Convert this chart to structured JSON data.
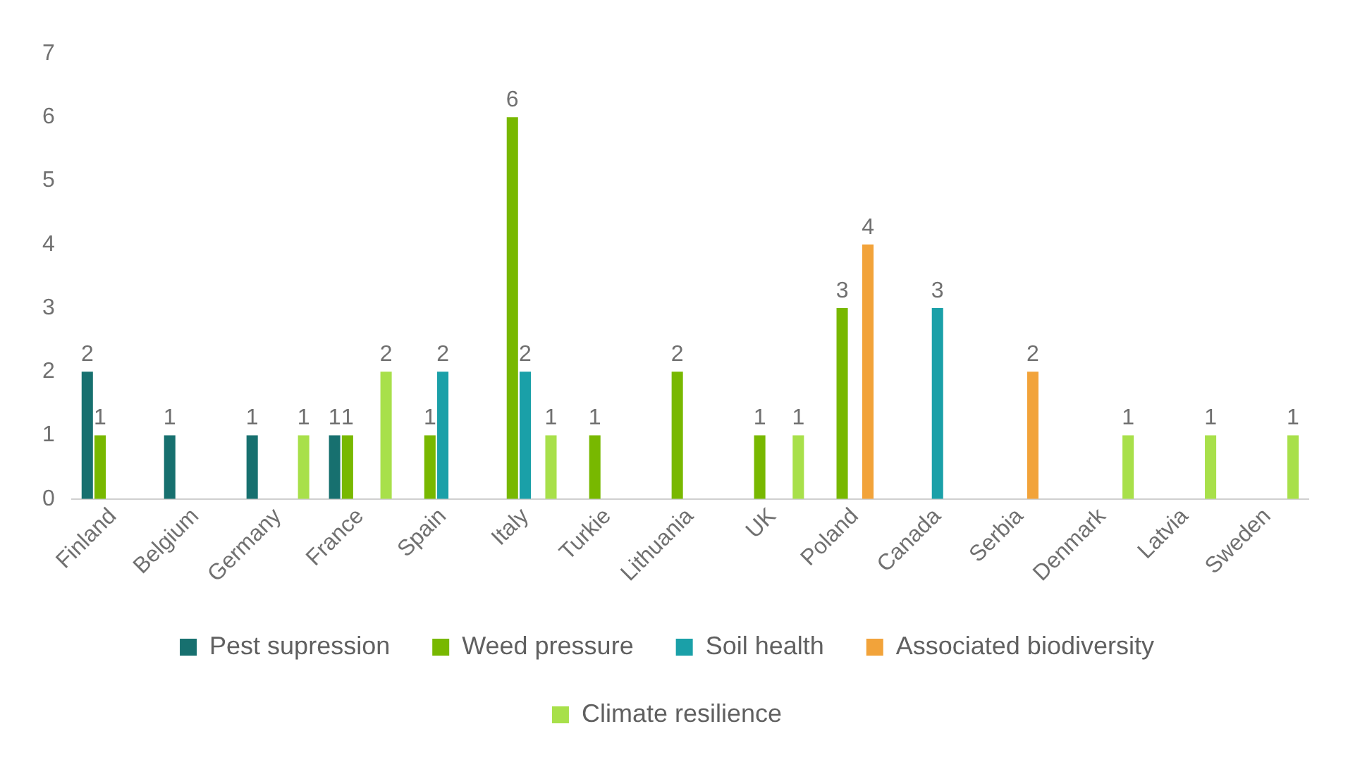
{
  "chart_data": {
    "type": "bar",
    "categories": [
      "Finland",
      "Belgium",
      "Germany",
      "France",
      "Spain",
      "Italy",
      "Turkie",
      "Lithuania",
      "UK",
      "Poland",
      "Canada",
      "Serbia",
      "Denmark",
      "Latvia",
      "Sweden"
    ],
    "series": [
      {
        "name": "Pest supression",
        "color": "#17706f",
        "values": [
          2,
          1,
          1,
          1,
          null,
          null,
          null,
          null,
          null,
          null,
          null,
          null,
          null,
          null,
          null
        ]
      },
      {
        "name": "Weed pressure",
        "color": "#78b800",
        "values": [
          1,
          null,
          null,
          1,
          1,
          6,
          1,
          2,
          1,
          3,
          null,
          null,
          null,
          null,
          null
        ]
      },
      {
        "name": "Soil health",
        "color": "#1aa0a8",
        "values": [
          null,
          null,
          null,
          null,
          2,
          2,
          null,
          null,
          null,
          null,
          3,
          null,
          null,
          null,
          null
        ]
      },
      {
        "name": "Associated biodiversity",
        "color": "#f2a33a",
        "values": [
          null,
          null,
          null,
          null,
          null,
          null,
          null,
          null,
          null,
          4,
          null,
          2,
          null,
          null,
          null
        ]
      },
      {
        "name": "Climate resilience",
        "color": "#a8e04a",
        "values": [
          null,
          null,
          1,
          2,
          null,
          1,
          null,
          null,
          1,
          null,
          null,
          null,
          1,
          1,
          1
        ]
      }
    ],
    "ylim": [
      0,
      7
    ],
    "yticks": [
      0,
      1,
      2,
      3,
      4,
      5,
      6,
      7
    ],
    "grid": false,
    "legend": "bottom",
    "data_labels": true
  }
}
